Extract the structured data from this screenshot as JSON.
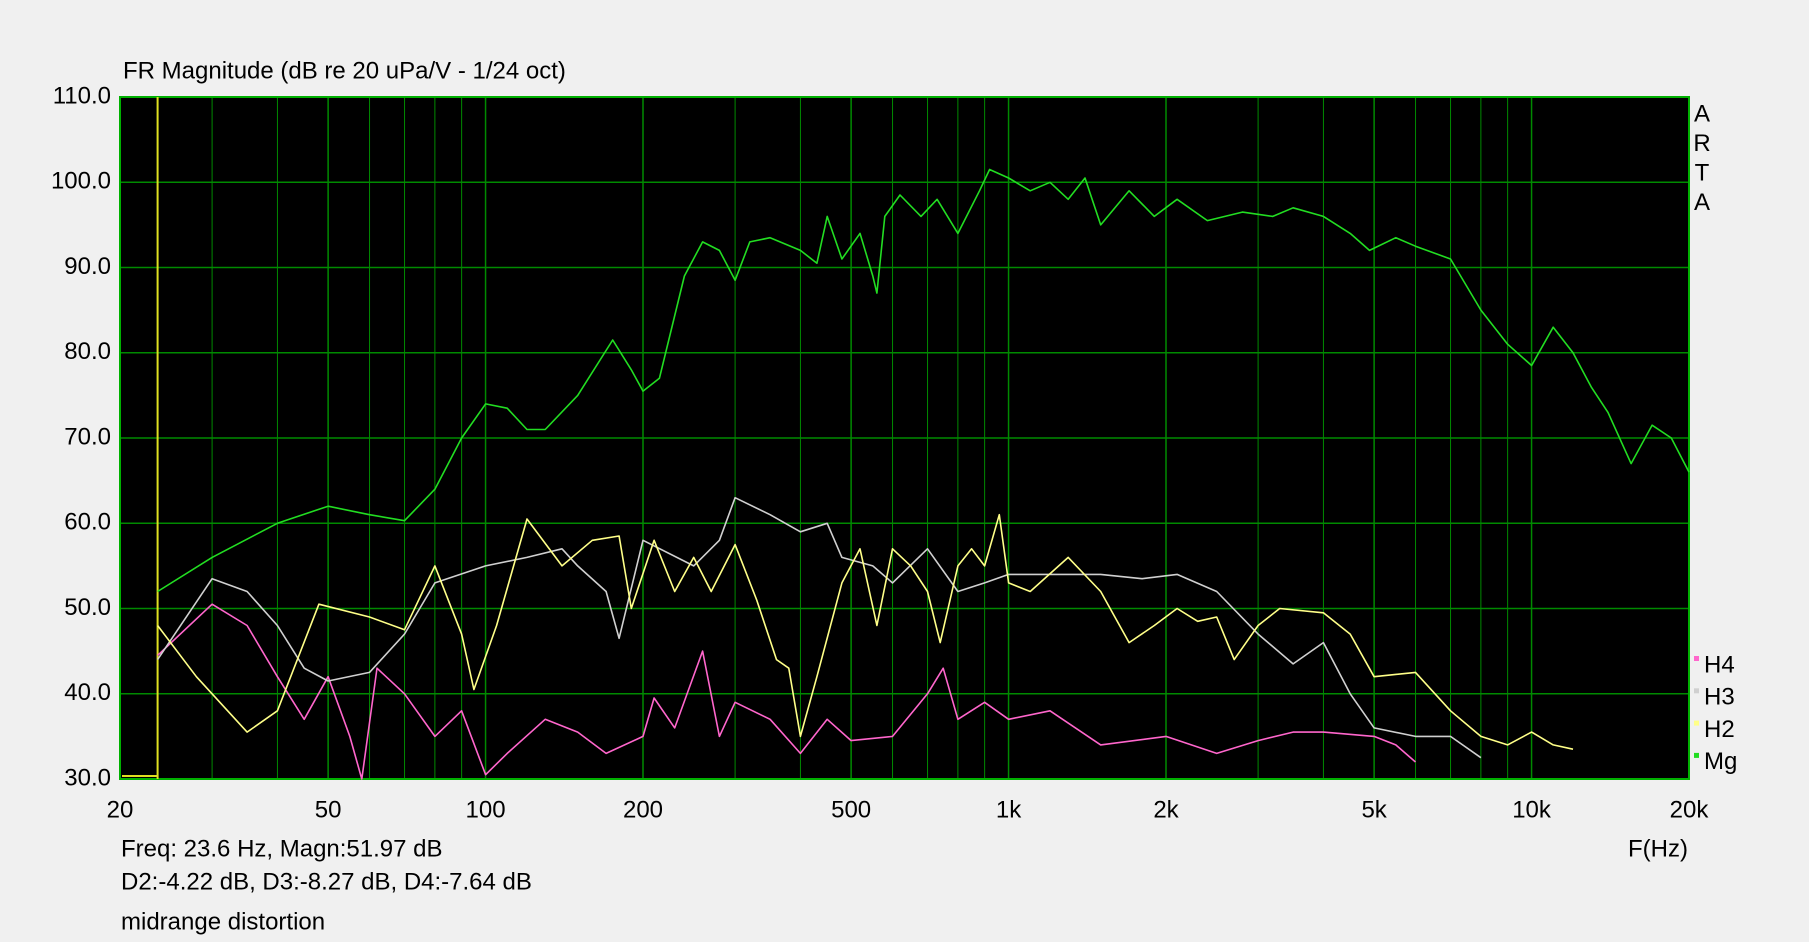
{
  "chart_data": {
    "type": "line",
    "title": "FR Magnitude (dB re 20 uPa/V - 1/24 oct)",
    "x_label": "F(Hz)",
    "side_label": [
      "A",
      "R",
      "T",
      "A"
    ],
    "xscale": "log",
    "xlim": [
      20,
      20000
    ],
    "xticks": [
      20,
      50,
      100,
      200,
      500,
      {
        "value": 1000,
        "label": "1k"
      },
      {
        "value": 2000,
        "label": "2k"
      },
      {
        "value": 5000,
        "label": "5k"
      },
      {
        "value": 10000,
        "label": "10k"
      },
      {
        "value": 20000,
        "label": "20k"
      }
    ],
    "xgrid": [
      30,
      40,
      60,
      70,
      80,
      90,
      300,
      400,
      600,
      700,
      800,
      900,
      3000,
      4000,
      6000,
      7000,
      8000,
      9000
    ],
    "ylim": [
      30,
      110
    ],
    "yticks": [
      {
        "value": 30,
        "label": "30.0"
      },
      {
        "value": 40,
        "label": "40.0"
      },
      {
        "value": 50,
        "label": "50.0"
      },
      {
        "value": 60,
        "label": "60.0"
      },
      {
        "value": 70,
        "label": "70.0"
      },
      {
        "value": 80,
        "label": "80.0"
      },
      {
        "value": 90,
        "label": "90.0"
      },
      {
        "value": 100,
        "label": "100.0"
      },
      {
        "value": 110,
        "label": "110.0"
      }
    ],
    "grid": true,
    "cursor_x": 23.6,
    "cursor_color": "#e0e020",
    "readout": [
      "Freq: 23.6 Hz, Magn:51.97 dB",
      "D2:-4.22 dB, D3:-8.27 dB, D4:-7.64 dB"
    ],
    "note": "midrange distortion",
    "legend_order": [
      3,
      2,
      1,
      0
    ],
    "series": [
      {
        "name": "Mg",
        "color": "#22dd22",
        "x": [
          23.6,
          30,
          40,
          50,
          60,
          70,
          80,
          90,
          100,
          110,
          120,
          130,
          150,
          175,
          190,
          200,
          215,
          240,
          260,
          280,
          300,
          320,
          350,
          400,
          430,
          450,
          480,
          520,
          550,
          560,
          580,
          620,
          680,
          730,
          800,
          880,
          920,
          1000,
          1100,
          1200,
          1300,
          1400,
          1500,
          1700,
          1900,
          2100,
          2400,
          2800,
          3200,
          3500,
          4000,
          4500,
          4900,
          5500,
          6000,
          7000,
          8000,
          9000,
          10000,
          11000,
          12000,
          13000,
          14000,
          15500,
          17000,
          18500,
          20000
        ],
        "values": [
          52,
          56,
          60,
          62,
          61,
          60.3,
          64,
          70,
          74,
          73.5,
          71,
          71,
          75,
          81.5,
          78,
          75.5,
          77,
          89,
          93,
          92,
          88.5,
          93,
          93.5,
          92,
          90.5,
          96,
          91,
          94,
          89,
          87,
          96,
          98.5,
          96,
          98,
          94,
          99,
          101.5,
          100.5,
          99,
          100,
          98,
          100.5,
          95,
          99,
          96,
          98,
          95.5,
          96.5,
          96,
          97,
          96,
          94,
          92,
          93.5,
          92.5,
          91,
          85,
          81,
          78.5,
          83,
          80,
          76,
          73,
          67,
          71.5,
          70,
          66
        ]
      },
      {
        "name": "H2",
        "color": "#ffff88",
        "x": [
          23.6,
          28,
          35,
          40,
          48,
          60,
          70,
          80,
          90,
          95,
          105,
          120,
          140,
          160,
          180,
          190,
          210,
          230,
          250,
          270,
          300,
          330,
          360,
          380,
          400,
          430,
          480,
          520,
          560,
          600,
          650,
          700,
          740,
          800,
          850,
          900,
          960,
          1000,
          1100,
          1300,
          1500,
          1700,
          1900,
          2100,
          2300,
          2500,
          2700,
          3000,
          3300,
          4000,
          4500,
          5000,
          6000,
          7000,
          8000,
          9000,
          10000,
          11000,
          12000
        ],
        "values": [
          48,
          42,
          35.5,
          38,
          50.5,
          49,
          47.5,
          55,
          47,
          40.5,
          48,
          60.5,
          55,
          58,
          58.5,
          50,
          58,
          52,
          56,
          52,
          57.5,
          51,
          44,
          43,
          35,
          42,
          53,
          57,
          48,
          57,
          55,
          52,
          46,
          55,
          57,
          55,
          61,
          53,
          52,
          56,
          52,
          46,
          48,
          50,
          48.5,
          49,
          44,
          48,
          50,
          49.5,
          47,
          42,
          42.5,
          38,
          35,
          34,
          35.5,
          34,
          33.5
        ]
      },
      {
        "name": "H3",
        "color": "#d0d0d0",
        "x": [
          23.6,
          30,
          35,
          40,
          45,
          50,
          60,
          70,
          80,
          100,
          120,
          140,
          150,
          170,
          180,
          200,
          250,
          280,
          300,
          350,
          400,
          450,
          480,
          550,
          600,
          700,
          800,
          900,
          1000,
          1200,
          1500,
          1800,
          2100,
          2500,
          3000,
          3500,
          4000,
          4500,
          5000,
          6000,
          7000,
          8000
        ],
        "values": [
          44,
          53.5,
          52,
          48,
          43,
          41.5,
          42.5,
          47,
          53,
          55,
          56,
          57,
          55,
          52,
          46.5,
          58,
          55,
          58,
          63,
          61,
          59,
          60,
          56,
          55,
          53,
          57,
          52,
          53,
          54,
          54,
          54,
          53.5,
          54,
          52,
          47,
          43.5,
          46,
          40,
          36,
          35,
          35,
          32.5
        ]
      },
      {
        "name": "H4",
        "color": "#ff66cc",
        "x": [
          23.6,
          30,
          35,
          40,
          45,
          50,
          55,
          58,
          62,
          70,
          80,
          90,
          100,
          110,
          130,
          150,
          170,
          200,
          210,
          230,
          260,
          280,
          300,
          350,
          400,
          450,
          500,
          600,
          700,
          750,
          800,
          900,
          1000,
          1200,
          1500,
          2000,
          2500,
          3000,
          3500,
          4000,
          5000,
          5500,
          6000
        ],
        "values": [
          44.5,
          50.5,
          48,
          42,
          37,
          42,
          35,
          30,
          43,
          40,
          35,
          38,
          30.5,
          33,
          37,
          35.5,
          33,
          35,
          39.5,
          36,
          45,
          35,
          39,
          37,
          33,
          37,
          34.5,
          35,
          40,
          43,
          37,
          39,
          37,
          38,
          34,
          35,
          33,
          34.5,
          35.5,
          35.5,
          35,
          34,
          32
        ]
      }
    ]
  }
}
